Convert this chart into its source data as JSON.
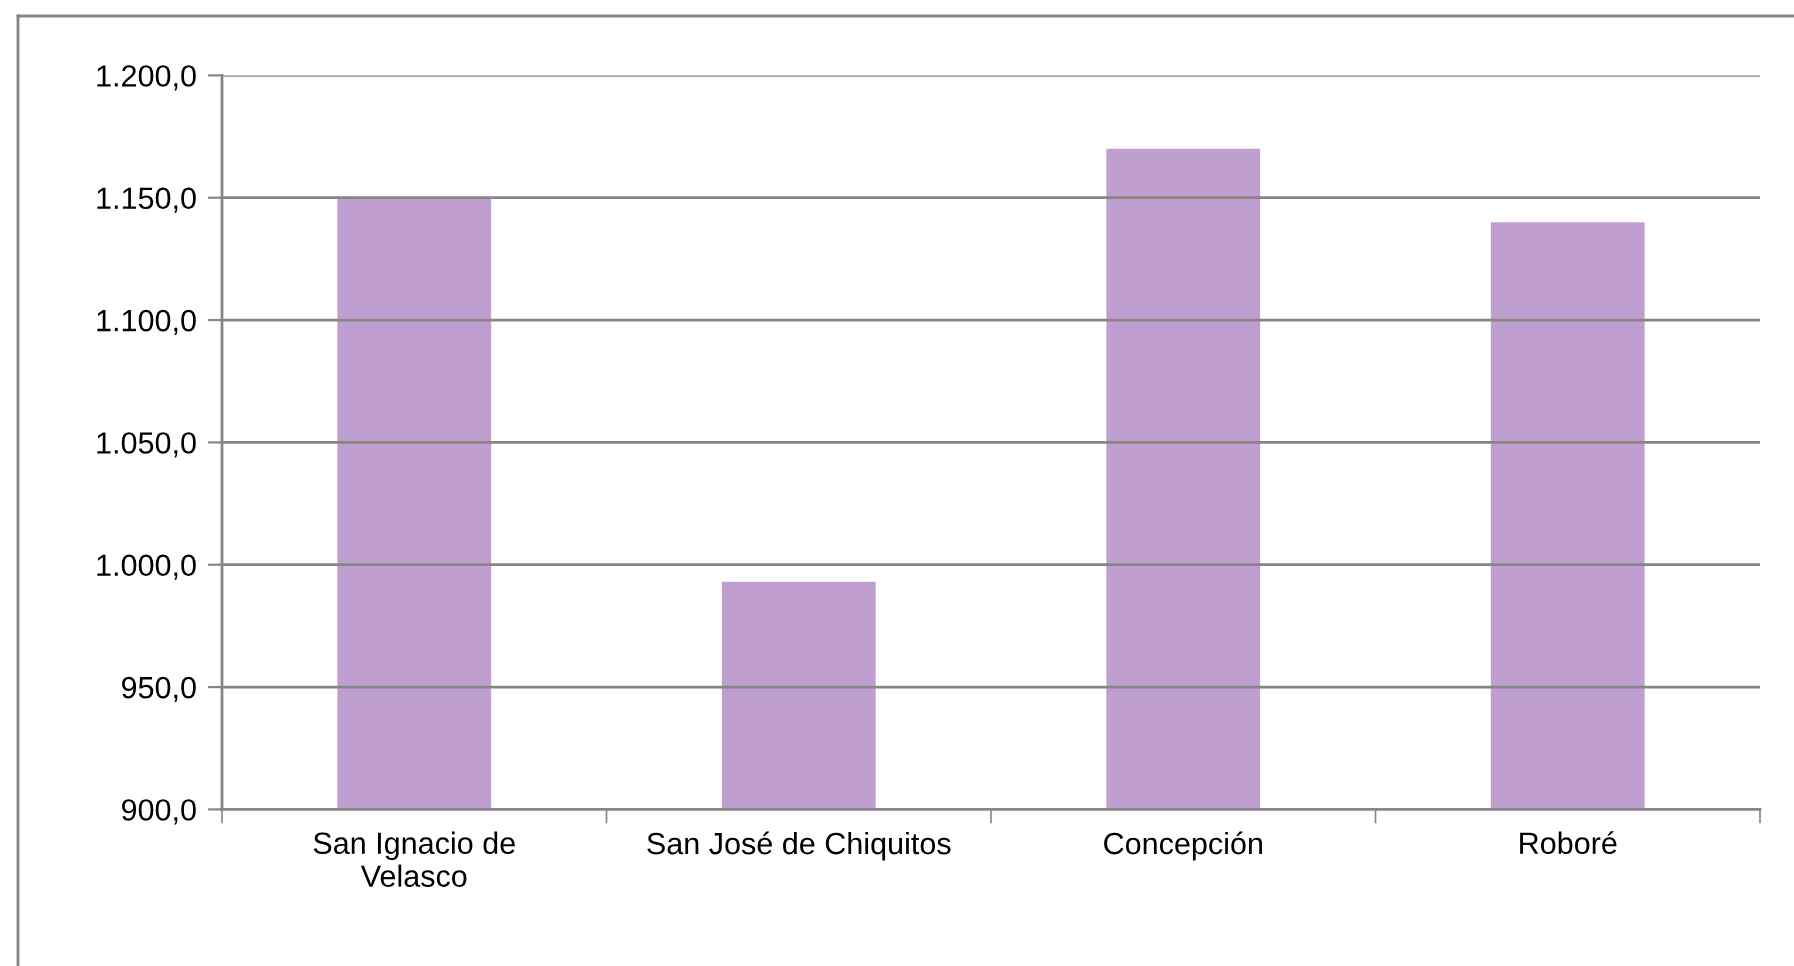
{
  "chart_data": {
    "type": "bar",
    "categories": [
      "San Ignacio de\nVelasco",
      "San José de Chiquitos",
      "Concepción",
      "Roboré"
    ],
    "values": [
      1150,
      993,
      1170,
      1140
    ],
    "color": "#bf9fd0",
    "ylim": [
      900,
      1200
    ],
    "yticks": [
      {
        "value": 900,
        "label": "900,0"
      },
      {
        "value": 950,
        "label": "950,0"
      },
      {
        "value": 1000,
        "label": "1.000,0"
      },
      {
        "value": 1050,
        "label": "1.050,0"
      },
      {
        "value": 1100,
        "label": "1.100,0"
      },
      {
        "value": 1150,
        "label": "1.150,0"
      },
      {
        "value": 1200,
        "label": "1.200,0"
      }
    ],
    "grid": "y"
  }
}
